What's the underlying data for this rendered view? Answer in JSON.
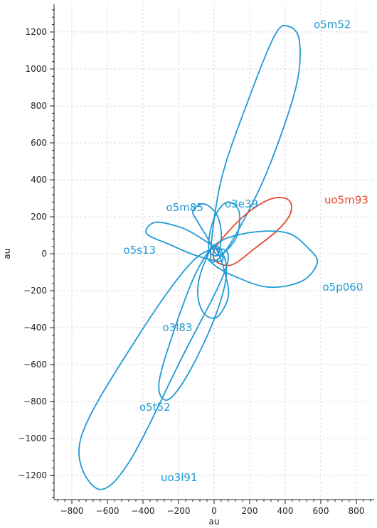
{
  "chart_data": {
    "type": "line",
    "xlabel": "au",
    "ylabel": "au",
    "xlim": [
      -900,
      900
    ],
    "ylim": [
      -1330,
      1350
    ],
    "xticks": [
      -800,
      -600,
      -400,
      -200,
      0,
      200,
      400,
      600,
      800
    ],
    "yticks": [
      -1200,
      -1000,
      -800,
      -600,
      -400,
      -200,
      0,
      200,
      400,
      600,
      800,
      1000,
      1200
    ],
    "xtick_labels": [
      "−800",
      "−600",
      "−400",
      "−200",
      "0",
      "200",
      "400",
      "600",
      "800"
    ],
    "ytick_labels": [
      "−1200",
      "−1000",
      "−800",
      "−600",
      "−400",
      "−200",
      "0",
      "200",
      "400",
      "600",
      "800",
      "1000",
      "1200"
    ],
    "grid": true,
    "colors": {
      "default": "#1f9ad6",
      "highlight": "#e8472c"
    },
    "series": [
      {
        "name": "o5m52",
        "color": "#1f9ad6",
        "points": [
          [
            -20,
            0
          ],
          [
            40,
            400
          ],
          [
            180,
            800
          ],
          [
            340,
            1180
          ],
          [
            420,
            1230
          ],
          [
            480,
            1150
          ],
          [
            460,
            900
          ],
          [
            300,
            450
          ],
          [
            120,
            100
          ],
          [
            20,
            -30
          ],
          [
            -20,
            0
          ]
        ],
        "label_at": [
          560,
          1240
        ]
      },
      {
        "name": "uo5m93",
        "color": "#e8472c",
        "points": [
          [
            0,
            20
          ],
          [
            80,
            120
          ],
          [
            200,
            230
          ],
          [
            330,
            300
          ],
          [
            420,
            290
          ],
          [
            430,
            220
          ],
          [
            360,
            130
          ],
          [
            230,
            30
          ],
          [
            100,
            -60
          ],
          [
            10,
            -40
          ],
          [
            0,
            20
          ]
        ],
        "label_at": [
          620,
          290
        ]
      },
      {
        "name": "o5p060",
        "color": "#1f9ad6",
        "points": [
          [
            -40,
            0
          ],
          [
            60,
            80
          ],
          [
            250,
            120
          ],
          [
            420,
            110
          ],
          [
            530,
            30
          ],
          [
            580,
            -50
          ],
          [
            490,
            -150
          ],
          [
            300,
            -180
          ],
          [
            110,
            -120
          ],
          [
            0,
            -60
          ],
          [
            -40,
            0
          ]
        ],
        "label_at": [
          610,
          -180
        ]
      },
      {
        "name": "o3e39",
        "color": "#1f9ad6",
        "points": [
          [
            -30,
            30
          ],
          [
            -20,
            130
          ],
          [
            20,
            230
          ],
          [
            80,
            280
          ],
          [
            140,
            230
          ],
          [
            130,
            100
          ],
          [
            60,
            10
          ],
          [
            0,
            -10
          ],
          [
            -30,
            30
          ]
        ],
        "label_at": [
          60,
          270
        ]
      },
      {
        "name": "o5m85",
        "color": "#1f9ad6",
        "points": [
          [
            10,
            0
          ],
          [
            -40,
            90
          ],
          [
            -90,
            170
          ],
          [
            -120,
            230
          ],
          [
            -60,
            270
          ],
          [
            10,
            220
          ],
          [
            40,
            120
          ],
          [
            30,
            20
          ],
          [
            10,
            0
          ]
        ],
        "label_at": [
          -270,
          250
        ]
      },
      {
        "name": "o5s13",
        "color": "#1f9ad6",
        "points": [
          [
            40,
            -40
          ],
          [
            -100,
            -10
          ],
          [
            -250,
            50
          ],
          [
            -380,
            110
          ],
          [
            -330,
            170
          ],
          [
            -180,
            140
          ],
          [
            -50,
            70
          ],
          [
            30,
            10
          ],
          [
            40,
            -40
          ]
        ],
        "label_at": [
          -510,
          20
        ]
      },
      {
        "name": "o3l83",
        "color": "#1f9ad6",
        "points": [
          [
            -10,
            40
          ],
          [
            -80,
            -120
          ],
          [
            -90,
            -240
          ],
          [
            -50,
            -330
          ],
          [
            20,
            -340
          ],
          [
            80,
            -230
          ],
          [
            60,
            -100
          ],
          [
            20,
            10
          ],
          [
            -10,
            40
          ]
        ],
        "label_at": [
          -290,
          -400
        ]
      },
      {
        "name": "o5t52",
        "color": "#1f9ad6",
        "points": [
          [
            10,
            40
          ],
          [
            -100,
            -100
          ],
          [
            -220,
            -400
          ],
          [
            -310,
            -700
          ],
          [
            -260,
            -790
          ],
          [
            -140,
            -640
          ],
          [
            10,
            -330
          ],
          [
            70,
            -90
          ],
          [
            10,
            40
          ]
        ],
        "label_at": [
          -420,
          -830
        ]
      },
      {
        "name": "uo3l91",
        "color": "#1f9ad6",
        "points": [
          [
            60,
            20
          ],
          [
            -120,
            -40
          ],
          [
            -430,
            -450
          ],
          [
            -750,
            -1000
          ],
          [
            -660,
            -1270
          ],
          [
            -480,
            -1130
          ],
          [
            -180,
            -560
          ],
          [
            50,
            -120
          ],
          [
            60,
            20
          ]
        ],
        "label_at": [
          -300,
          -1210
        ]
      }
    ]
  }
}
